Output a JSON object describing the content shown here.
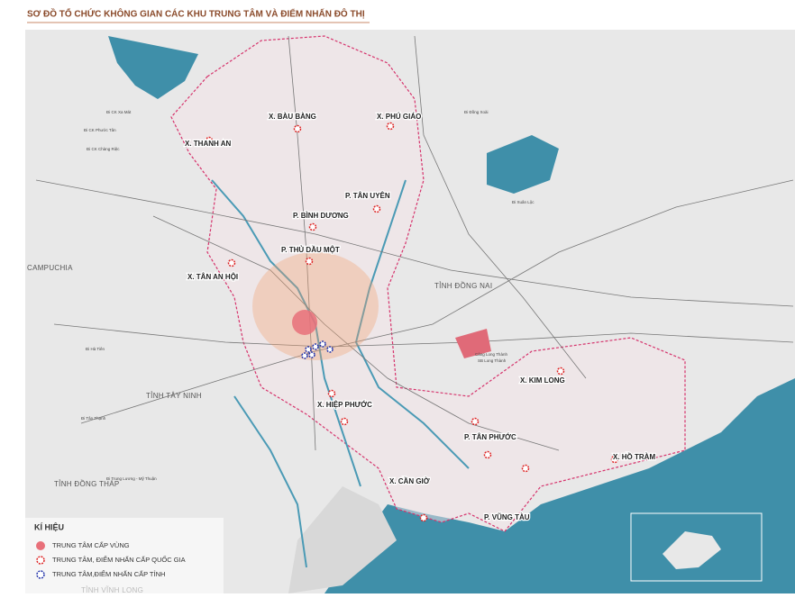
{
  "title": "SƠ ĐỒ TỔ CHỨC KHÔNG GIAN CÁC KHU TRUNG TÂM VÀ ĐIỂM NHẤN ĐÔ THỊ",
  "places": [
    "X. BÀU BÀNG",
    "X. PHÚ GIÁO",
    "X. THANH AN",
    "P. TÂN UYÊN",
    "P. BÌNH DƯƠNG",
    "P. THỦ DẦU MỘT",
    "X. TÂN AN HỘI",
    "X. KIM LONG",
    "X. HIỆP PHƯỚC",
    "P. TÂN PHƯỚC",
    "X. HỒ TRÀM",
    "X. CẦN GIỜ",
    "P. VŨNG TÀU"
  ],
  "regions": [
    "CAMPUCHIA",
    "TỈNH ĐỒNG NAI",
    "TỈNH TÂY NINH",
    "TỈNH ĐỒNG THÁP",
    "TỈNH VĨNH LONG"
  ],
  "small_labels": [
    "Đi Đồng Xoài",
    "Đi CK Xa Mát",
    "Đi CK Phước Tân",
    "Đi CK Chàng Riệc",
    "Đi Hà Tiên",
    "Đi Tân Thạnh",
    "Đi Trung Lương - Mỹ Thuận",
    "Cảng Long Thành",
    "SB Long Thành",
    "Đi Xuân Lộc"
  ],
  "legend": {
    "title": "KÍ HIỆU",
    "items": [
      "TRUNG TÂM CẤP VÙNG",
      "TRUNG TÂM, ĐIỂM NHẤN CẤP QUỐC GIA",
      "TRUNG TÂM,ĐIỂM NHẤN CẤP TỈNH"
    ]
  }
}
